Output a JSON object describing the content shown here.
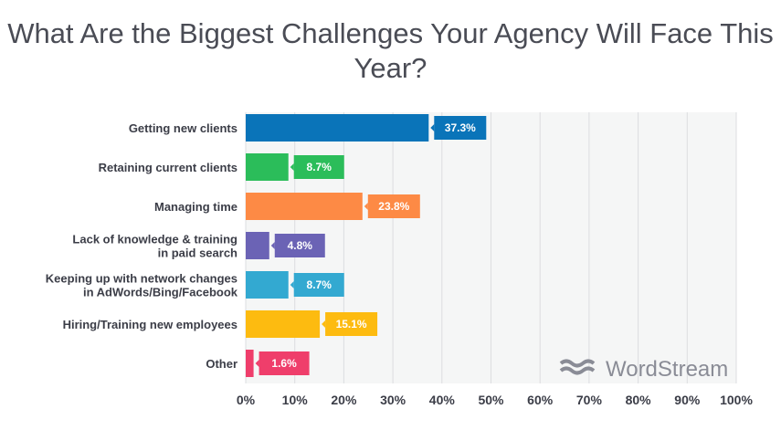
{
  "chart_data": {
    "type": "bar",
    "orientation": "horizontal",
    "title": "What Are the Biggest Challenges Your Agency Will Face This Year?",
    "categories": [
      [
        "Getting new clients"
      ],
      [
        "Retaining current clients"
      ],
      [
        "Managing time"
      ],
      [
        "Lack of knowledge & training",
        "in paid search"
      ],
      [
        "Keeping up with network changes",
        "in AdWords/Bing/Facebook"
      ],
      [
        "Hiring/Training new employees"
      ],
      [
        "Other"
      ]
    ],
    "values": [
      37.3,
      8.7,
      23.8,
      4.8,
      8.7,
      15.1,
      1.6
    ],
    "value_labels": [
      "37.3%",
      "8.7%",
      "23.8%",
      "4.8%",
      "8.7%",
      "15.1%",
      "1.6%"
    ],
    "colors": [
      "#0a74b9",
      "#2bbd5a",
      "#fd8a45",
      "#6b63b5",
      "#33a9d1",
      "#fdbb10",
      "#ef3e6b"
    ],
    "xlim": [
      0,
      100
    ],
    "xticks": [
      "0%",
      "10%",
      "20%",
      "30%",
      "40%",
      "50%",
      "60%",
      "70%",
      "80%",
      "90%",
      "100%"
    ],
    "grid": true
  },
  "watermark": "WordStream"
}
